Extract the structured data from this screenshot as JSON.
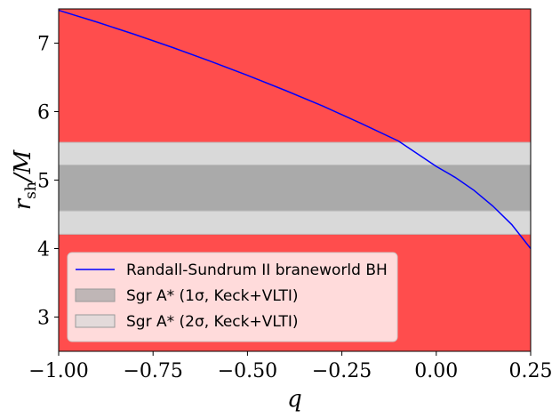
{
  "chart_data": {
    "type": "line",
    "title": "",
    "xlabel": "q",
    "ylabel_main": "r",
    "ylabel_sub": "sh",
    "ylabel_tail": "/M",
    "xlim": [
      -1.0,
      0.25
    ],
    "ylim": [
      2.5,
      7.5
    ],
    "x_ticks": [
      -1.0,
      -0.75,
      -0.5,
      -0.25,
      0.0,
      0.25
    ],
    "x_tick_labels": [
      "−1.00",
      "−0.75",
      "−0.50",
      "−0.25",
      "0.00",
      "0.25"
    ],
    "y_ticks": [
      3,
      4,
      5,
      6,
      7
    ],
    "y_tick_labels": [
      "3",
      "4",
      "5",
      "6",
      "7"
    ],
    "grid": false,
    "legend_position": "lower-left",
    "bands": [
      {
        "name": "excluded-upper",
        "y0": 5.55,
        "y1": 7.5,
        "color": "#ff4d4d"
      },
      {
        "name": "excluded-lower",
        "y0": 2.5,
        "y1": 4.21,
        "color": "#ff4d4d"
      },
      {
        "name": "Sgr A* (2σ, Keck+VLTI)",
        "y0": 4.21,
        "y1": 5.55,
        "color": "#d9d9d9"
      },
      {
        "name": "Sgr A* (1σ, Keck+VLTI)",
        "y0": 4.55,
        "y1": 5.22,
        "color": "#aaaaaa"
      }
    ],
    "series": [
      {
        "name": "Randall-Sundrum II braneworld BH",
        "color": "#0000ff",
        "x": [
          -1.0,
          -0.9,
          -0.8,
          -0.7,
          -0.6,
          -0.5,
          -0.4,
          -0.3,
          -0.2,
          -0.1,
          0.0,
          0.05,
          0.1,
          0.15,
          0.2,
          0.25
        ],
        "y": [
          7.48,
          7.31,
          7.13,
          6.94,
          6.74,
          6.53,
          6.31,
          6.08,
          5.83,
          5.57,
          5.2,
          5.04,
          4.85,
          4.62,
          4.35,
          4.0
        ]
      }
    ],
    "legend": [
      {
        "label": "Randall-Sundrum II braneworld BH",
        "kind": "line",
        "color": "#0000ff"
      },
      {
        "label": "Sgr A* (1σ, Keck+VLTI)",
        "kind": "patch",
        "color": "#aaaaaa"
      },
      {
        "label": "Sgr A* (2σ, Keck+VLTI)",
        "kind": "patch",
        "color": "#d9d9d9"
      }
    ]
  }
}
